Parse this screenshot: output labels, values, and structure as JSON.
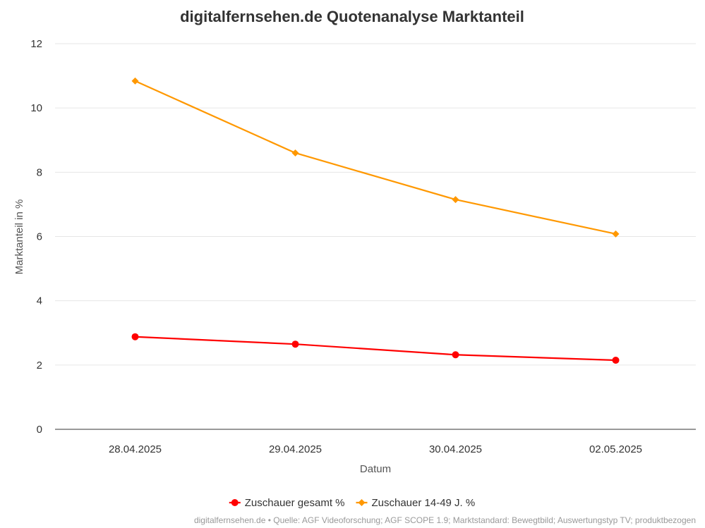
{
  "chart_data": {
    "type": "line",
    "title": "digitalfernsehen.de Quotenanalyse Marktanteil",
    "xlabel": "Datum",
    "ylabel": "Marktanteil in %",
    "categories": [
      "28.04.2025",
      "29.04.2025",
      "30.04.2025",
      "02.05.2025"
    ],
    "ylim": [
      0,
      12
    ],
    "yticks": [
      0,
      2,
      4,
      6,
      8,
      10,
      12
    ],
    "grid": true,
    "legend_position": "bottom-center",
    "series": [
      {
        "name": "Zuschauer gesamt %",
        "values": [
          2.88,
          2.65,
          2.32,
          2.15
        ],
        "color": "#ff0000",
        "marker": "circle"
      },
      {
        "name": "Zuschauer 14-49 J. %",
        "values": [
          10.84,
          8.6,
          7.15,
          6.08
        ],
        "color": "#ff9800",
        "marker": "diamond"
      }
    ],
    "credits": "digitalfernsehen.de • Quelle: AGF Videoforschung; AGF SCOPE 1.9; Marktstandard: Bewegtbild; Auswertungstyp TV; produktbezogen"
  }
}
